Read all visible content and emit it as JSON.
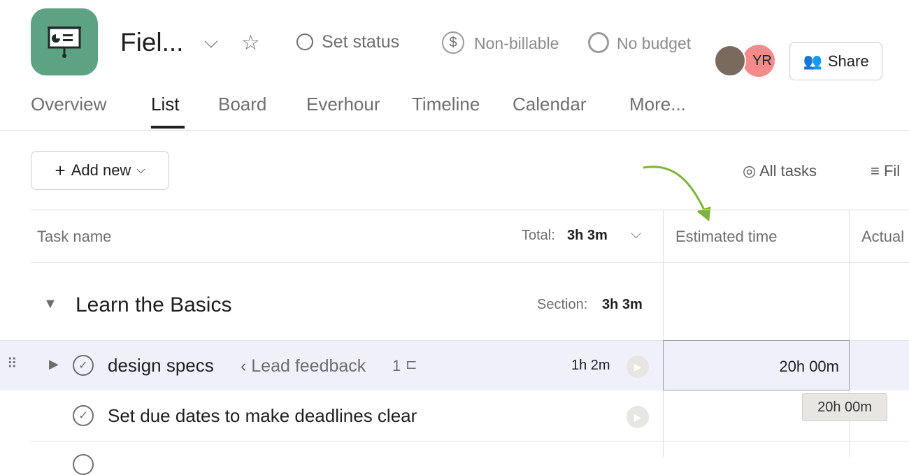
{
  "project": {
    "title": "Fiel...",
    "set_status": "Set status",
    "billing": "Non-billable",
    "budget": "No budget",
    "accent": "#5da283"
  },
  "members": [
    {
      "initials": "",
      "color": "#7a6a5e"
    },
    {
      "initials": "YR",
      "color": "#f48a8a"
    }
  ],
  "share_label": "Share",
  "tabs": [
    "Overview",
    "List",
    "Board",
    "Everhour",
    "Timeline",
    "Calendar",
    "More..."
  ],
  "toolbar": {
    "add_new": "Add new",
    "all_tasks": "All tasks",
    "filter": "Fil"
  },
  "columns": {
    "task_name": "Task name",
    "total_label": "Total:",
    "total_value": "3h 3m",
    "estimated": "Estimated time",
    "actual": "Actual"
  },
  "section": {
    "name": "Learn the Basics",
    "label": "Section:",
    "value": "3h 3m"
  },
  "tasks": [
    {
      "name": "design specs",
      "parent": "‹ Lead feedback",
      "subtasks": "1",
      "time": "1h 2m",
      "estimate": "20h 00m"
    },
    {
      "name": "Set due dates to make deadlines clear",
      "parent": "",
      "subtasks": "",
      "time": "",
      "estimate": ""
    }
  ],
  "tooltip": "20h 00m"
}
